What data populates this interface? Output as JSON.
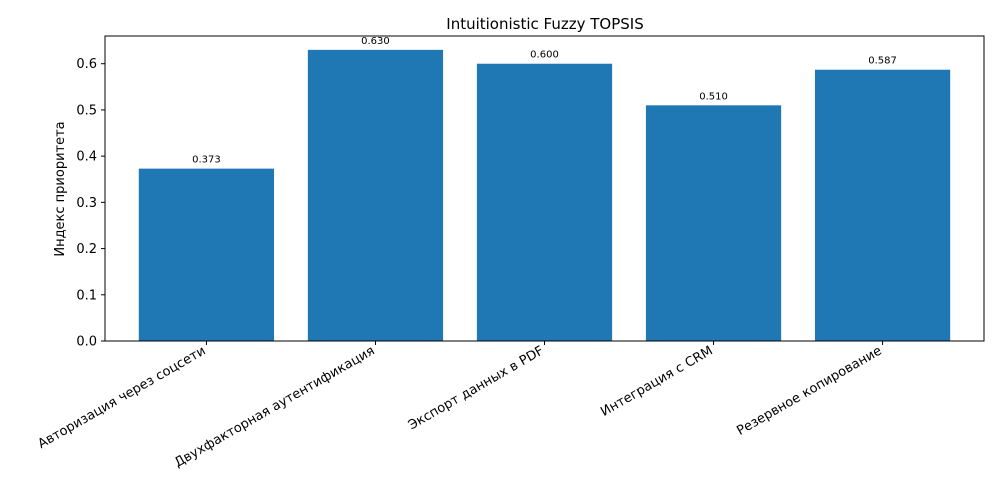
{
  "chart_data": {
    "type": "bar",
    "title": "Intuitionistic Fuzzy TOPSIS",
    "xlabel": "",
    "ylabel": "Индекс приоритета",
    "categories": [
      "Авторизация через соцсети",
      "Двухфакторная аутентификация",
      "Экспорт данных в PDF",
      "Интеграция с CRM",
      "Резервное копирование"
    ],
    "values": [
      0.373,
      0.63,
      0.6,
      0.51,
      0.587
    ],
    "value_labels": [
      "0.373",
      "0.630",
      "0.600",
      "0.510",
      "0.587"
    ],
    "ylim": [
      0,
      0.66
    ],
    "yticks": [
      0.0,
      0.1,
      0.2,
      0.3,
      0.4,
      0.5,
      0.6
    ],
    "ytick_labels": [
      "0.0",
      "0.1",
      "0.2",
      "0.3",
      "0.4",
      "0.5",
      "0.6"
    ],
    "bar_color": "#1f77b4",
    "grid": false,
    "legend": "none"
  }
}
